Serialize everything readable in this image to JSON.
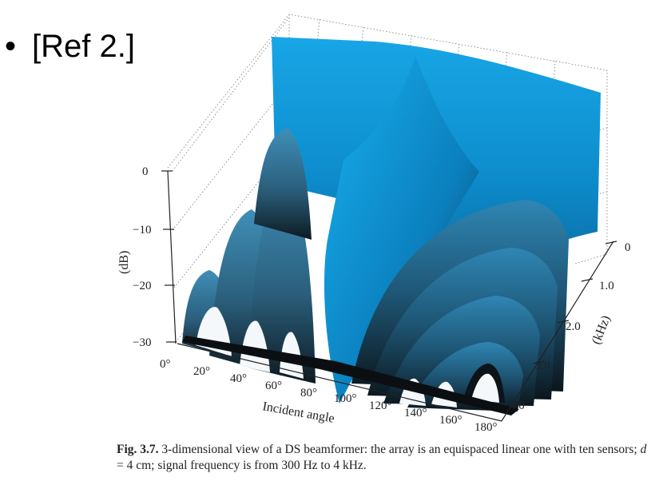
{
  "slide": {
    "bullet": "•",
    "ref_text": "[Ref 2.]"
  },
  "figure": {
    "caption_label": "Fig. 3.7.",
    "caption_text_a": " 3-dimensional view of a DS beamformer: the array is an equispaced linear one with ten sensors; ",
    "caption_math": "d",
    "caption_text_b": " = 4 cm; signal frequency is from 300 Hz to 4 kHz."
  },
  "chart_data": {
    "type": "surface",
    "title": "",
    "xlabel": "Incident angle",
    "ylabel": "(kHz)",
    "zlabel": "(dB)",
    "x_ticks": [
      "0°",
      "20°",
      "40°",
      "60°",
      "80°",
      "100°",
      "120°",
      "140°",
      "160°",
      "180°"
    ],
    "y_ticks": [
      "0",
      "1.0",
      "2.0",
      "3.0",
      "4.0"
    ],
    "z_ticks": [
      "0",
      "−10",
      "−20",
      "−30"
    ],
    "xlim": [
      0,
      180
    ],
    "ylim": [
      0,
      4.0
    ],
    "zlim": [
      -30,
      0
    ],
    "grid": true,
    "main_lobe_angle": 90,
    "colors": {
      "high": "#00aaee",
      "mid": "#2f7fa8",
      "low": "#111111"
    }
  }
}
